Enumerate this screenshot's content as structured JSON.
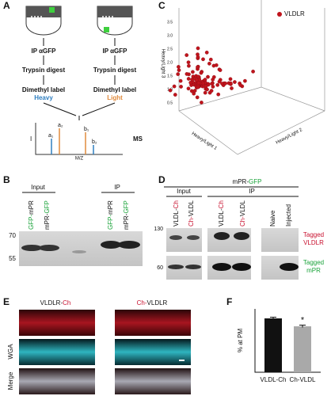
{
  "panel_a": {
    "letter": "A",
    "columns": [
      {
        "ip": "IP αGFP",
        "digest": "Trypsin digest",
        "label": "Dimethyl label",
        "isotope": "Heavy"
      },
      {
        "ip": "IP αGFP",
        "digest": "Trypsin digest",
        "label": "Dimethyl label",
        "isotope": "Light"
      }
    ],
    "ms": {
      "label": "MS",
      "y_axis": "I",
      "x_axis": "M/Z",
      "peaks": [
        "a₁",
        "a₂",
        "b₁",
        "b₂"
      ]
    }
  },
  "panel_b": {
    "letter": "B",
    "groups": [
      "Input",
      "IP"
    ],
    "lanes": [
      [
        "GFP-",
        "mPR"
      ],
      [
        "mPR-",
        "GFP"
      ],
      [
        "GFP-",
        "mPR"
      ],
      [
        "mPR-",
        "GFP"
      ]
    ],
    "markers": [
      "70",
      "55"
    ]
  },
  "panel_c": {
    "letter": "C",
    "highlight": "VLDLR",
    "axes": [
      "Heavy/Light 3",
      "Heavy/Light 1",
      "Heavy/Light 2"
    ],
    "ticks": [
      "3.5",
      "3.0",
      "2.5",
      "2.0",
      "1.5",
      "1.0",
      "0.5"
    ]
  },
  "panel_d": {
    "letter": "D",
    "construct": [
      "mPR-",
      "GFP"
    ],
    "groups": [
      "Input",
      "IP"
    ],
    "lanes": [
      [
        "VLDL-",
        "Ch"
      ],
      [
        "Ch-",
        "VLDL"
      ],
      [
        "VLDL-",
        "Ch"
      ],
      [
        "Ch-",
        "VLDL"
      ],
      [
        "Naive"
      ],
      [
        "Injected"
      ]
    ],
    "markers": [
      "130",
      "60"
    ],
    "rows": [
      [
        "Tagged",
        "VLDLR"
      ],
      [
        "Tagged",
        "mPR"
      ]
    ]
  },
  "panel_e": {
    "letter": "E",
    "columns": [
      [
        "VLDLR-",
        "Ch"
      ],
      [
        "Ch-",
        "VLDLR"
      ]
    ],
    "rows": [
      "WGA",
      "Merge"
    ]
  },
  "chart_data": {
    "type": "bar",
    "letter": "F",
    "ylabel": "% at PM",
    "categories": [
      "VLDL-Ch",
      "Ch-VLDL"
    ],
    "values": [
      68,
      58
    ],
    "errors": [
      1.5,
      1.5
    ],
    "colors": [
      "#111111",
      "#a9a9a9"
    ],
    "ylim": [
      0,
      80
    ],
    "annotation": "*"
  }
}
